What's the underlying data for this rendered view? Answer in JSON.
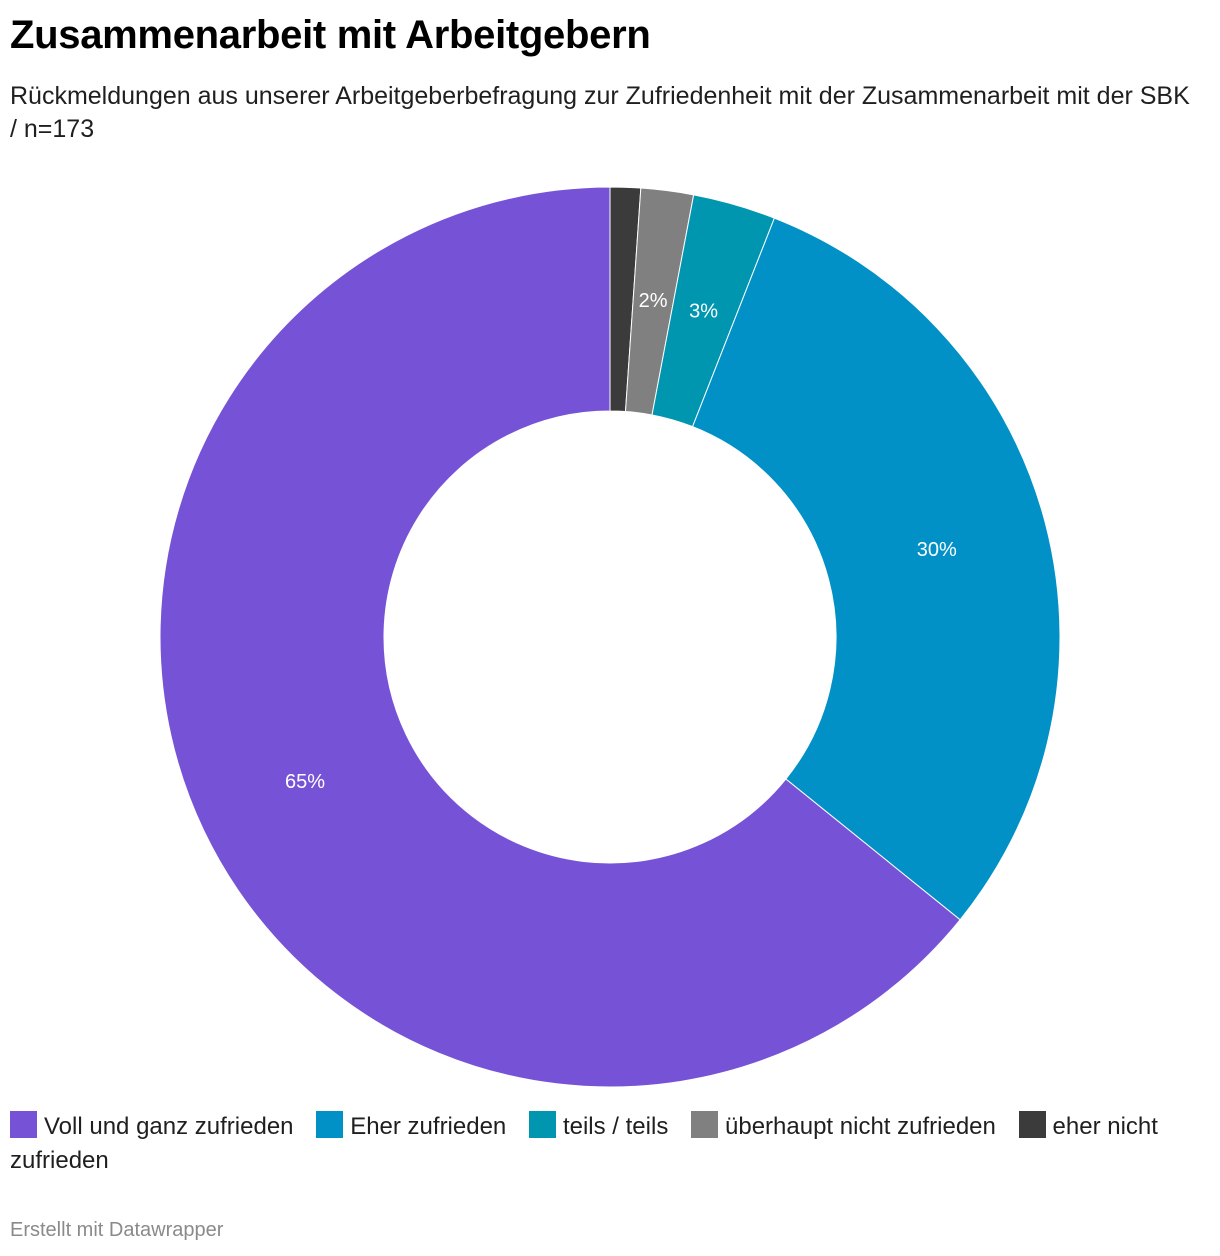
{
  "header": {
    "title": "Zusammenarbeit mit Arbeitgebern",
    "subtitle": "Rückmeldungen aus unserer Arbeitgeberbefragung zur Zufriedenheit mit der Zusammenarbeit mit der SBK / n=173"
  },
  "chart_data": {
    "type": "pie",
    "variant": "donut",
    "categories": [
      "Voll und ganz zufrieden",
      "Eher zufrieden",
      "teils / teils",
      "überhaupt nicht zufrieden",
      "eher nicht zufrieden"
    ],
    "values": [
      64.7,
      30.1,
      3.0,
      1.9,
      1.1
    ],
    "labels": [
      "65%",
      "30%",
      "3%",
      "2%",
      ""
    ],
    "colors": [
      "#7653d6",
      "#0191c6",
      "#0096b0",
      "#808080",
      "#3b3b3b"
    ],
    "legend_placement": "bottom"
  },
  "footer": {
    "credit": "Erstellt mit Datawrapper"
  }
}
